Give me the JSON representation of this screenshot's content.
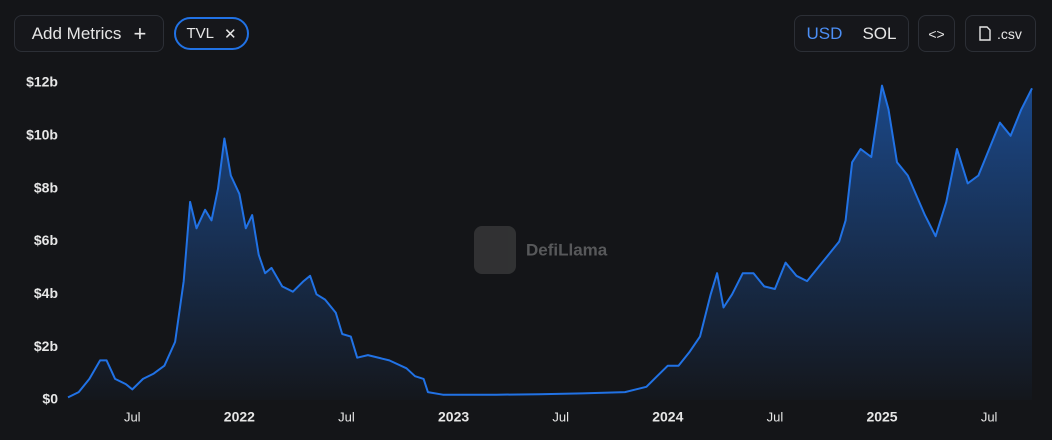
{
  "controls": {
    "add_metrics": "Add Metrics",
    "add_icon": "+",
    "metric_chip": "TVL",
    "chip_close": "✕",
    "currencies": [
      "USD",
      "SOL"
    ],
    "embed": "<>",
    "csv": ".csv",
    "watermark": "DefiLlama"
  },
  "chart_data": {
    "type": "area",
    "x": [
      2021.2,
      2021.25,
      2021.3,
      2021.35,
      2021.38,
      2021.42,
      2021.47,
      2021.5,
      2021.55,
      2021.6,
      2021.65,
      2021.7,
      2021.74,
      2021.77,
      2021.8,
      2021.84,
      2021.87,
      2021.9,
      2021.93,
      2021.96,
      2022.0,
      2022.03,
      2022.06,
      2022.09,
      2022.12,
      2022.15,
      2022.2,
      2022.25,
      2022.3,
      2022.33,
      2022.36,
      2022.4,
      2022.45,
      2022.48,
      2022.52,
      2022.55,
      2022.6,
      2022.7,
      2022.78,
      2022.82,
      2022.86,
      2022.88,
      2022.95,
      2023.0,
      2023.2,
      2023.4,
      2023.6,
      2023.8,
      2023.9,
      2023.95,
      2024.0,
      2024.05,
      2024.1,
      2024.15,
      2024.2,
      2024.23,
      2024.26,
      2024.3,
      2024.35,
      2024.4,
      2024.45,
      2024.5,
      2024.55,
      2024.6,
      2024.65,
      2024.7,
      2024.75,
      2024.8,
      2024.83,
      2024.86,
      2024.9,
      2024.95,
      2025.0,
      2025.03,
      2025.07,
      2025.12,
      2025.2,
      2025.25,
      2025.3,
      2025.35,
      2025.4,
      2025.45,
      2025.5,
      2025.55,
      2025.6,
      2025.65,
      2025.7
    ],
    "series": [
      {
        "name": "TVL",
        "color": "#2172e5",
        "values": [
          0.1,
          0.3,
          0.8,
          1.5,
          1.5,
          0.8,
          0.6,
          0.4,
          0.8,
          1.0,
          1.3,
          2.2,
          4.5,
          7.5,
          6.5,
          7.2,
          6.8,
          8.0,
          9.9,
          8.5,
          7.8,
          6.5,
          7.0,
          5.5,
          4.8,
          5.0,
          4.3,
          4.1,
          4.5,
          4.7,
          4.0,
          3.8,
          3.3,
          2.5,
          2.4,
          1.6,
          1.7,
          1.5,
          1.2,
          0.9,
          0.8,
          0.3,
          0.2,
          0.2,
          0.2,
          0.22,
          0.25,
          0.3,
          0.5,
          0.9,
          1.3,
          1.3,
          1.8,
          2.4,
          4.0,
          4.8,
          3.5,
          4.0,
          4.8,
          4.8,
          4.3,
          4.2,
          5.2,
          4.7,
          4.5,
          5.0,
          5.5,
          6.0,
          6.8,
          9.0,
          9.5,
          9.2,
          11.9,
          11.0,
          9.0,
          8.5,
          7.0,
          6.2,
          7.5,
          9.5,
          8.2,
          8.5,
          9.5,
          10.5,
          10.0,
          11.0,
          11.8
        ]
      }
    ],
    "xlim": [
      2021.2,
      2025.7
    ],
    "xticks": [
      {
        "value": 2021.5,
        "label": "Jul"
      },
      2022,
      {
        "value": 2022.5,
        "label": "Jul"
      },
      2023,
      {
        "value": 2023.5,
        "label": "Jul"
      },
      2024,
      {
        "value": 2024.5,
        "label": "Jul"
      },
      2025,
      {
        "value": 2025.5,
        "label": "Jul"
      }
    ],
    "ylim": [
      0,
      12
    ],
    "yticks": [
      {
        "value": 0,
        "label": "$0"
      },
      {
        "value": 2,
        "label": "$2b"
      },
      {
        "value": 4,
        "label": "$4b"
      },
      {
        "value": 6,
        "label": "$6b"
      },
      {
        "value": 8,
        "label": "$8b"
      },
      {
        "value": 10,
        "label": "$10b"
      },
      {
        "value": 12,
        "label": "$12b"
      }
    ],
    "grid": false
  }
}
